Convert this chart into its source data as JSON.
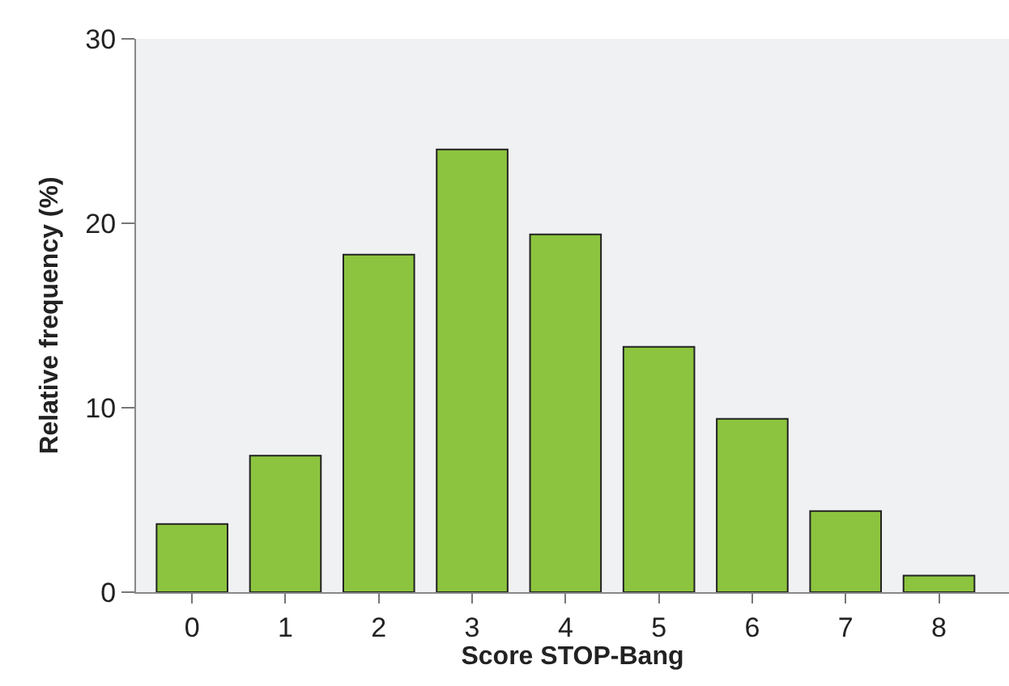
{
  "chart_data": {
    "type": "bar",
    "xlabel": "Score STOP-Bang",
    "ylabel": "Relative frequency (%)",
    "categories": [
      "0",
      "1",
      "2",
      "3",
      "4",
      "5",
      "6",
      "7",
      "8"
    ],
    "values": [
      3.7,
      7.4,
      18.3,
      24.0,
      19.4,
      13.3,
      9.4,
      4.4,
      0.9
    ],
    "color": "#8cc43f",
    "ylim": [
      0,
      30
    ],
    "yticks": [
      0,
      10,
      20,
      30
    ],
    "grid": false
  }
}
